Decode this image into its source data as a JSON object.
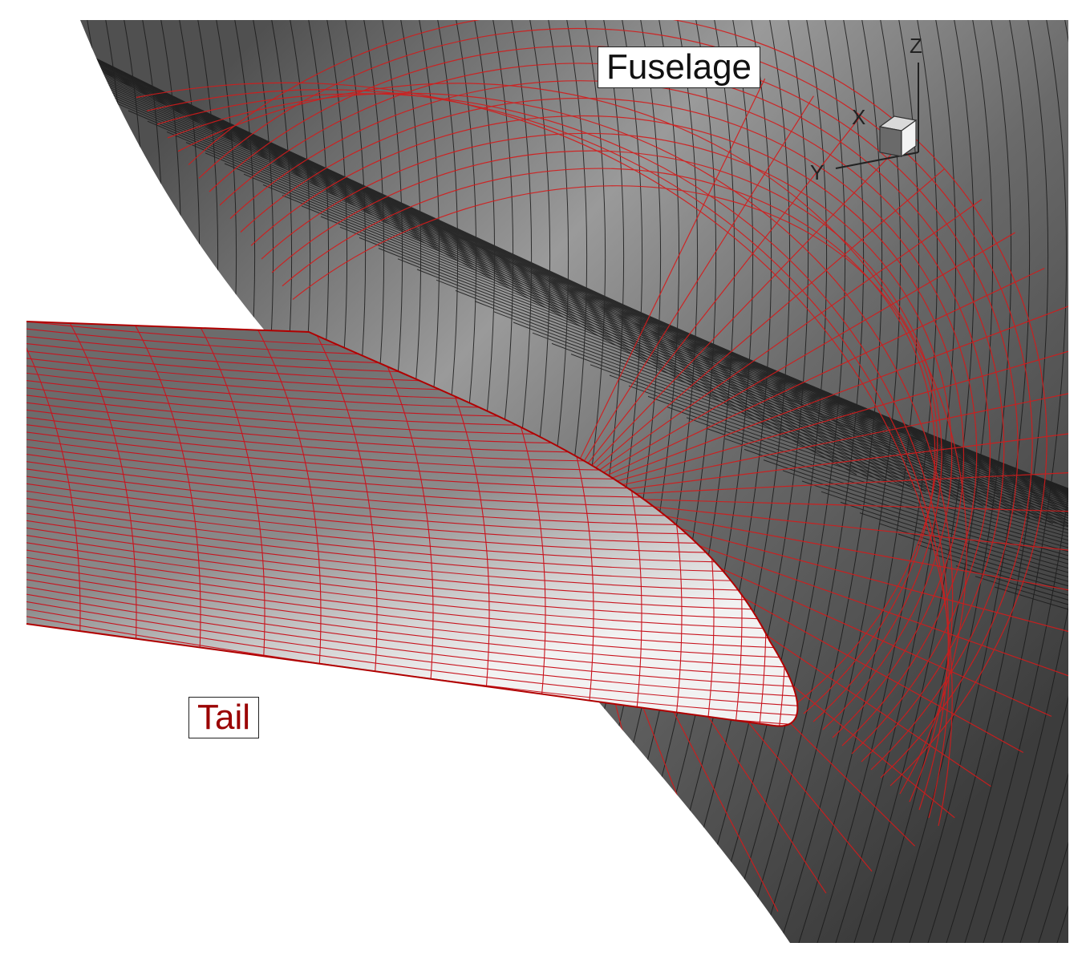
{
  "labels": {
    "fuselage": "Fuselage",
    "tail": "Tail"
  },
  "axes": {
    "x": "X",
    "y": "Y",
    "z": "Z"
  },
  "colors": {
    "background": "#ffffff",
    "fuselage_surface": "#6e6e6e",
    "fuselage_grid": "#1a1a1a",
    "tail_surface": "#b9b9b9",
    "tail_grid": "#c8141e",
    "overset_grid": "#d41b1b",
    "tail_label_text": "#9a0000"
  },
  "icons": [
    "axis-triad-icon",
    "orientation-cube-icon"
  ]
}
